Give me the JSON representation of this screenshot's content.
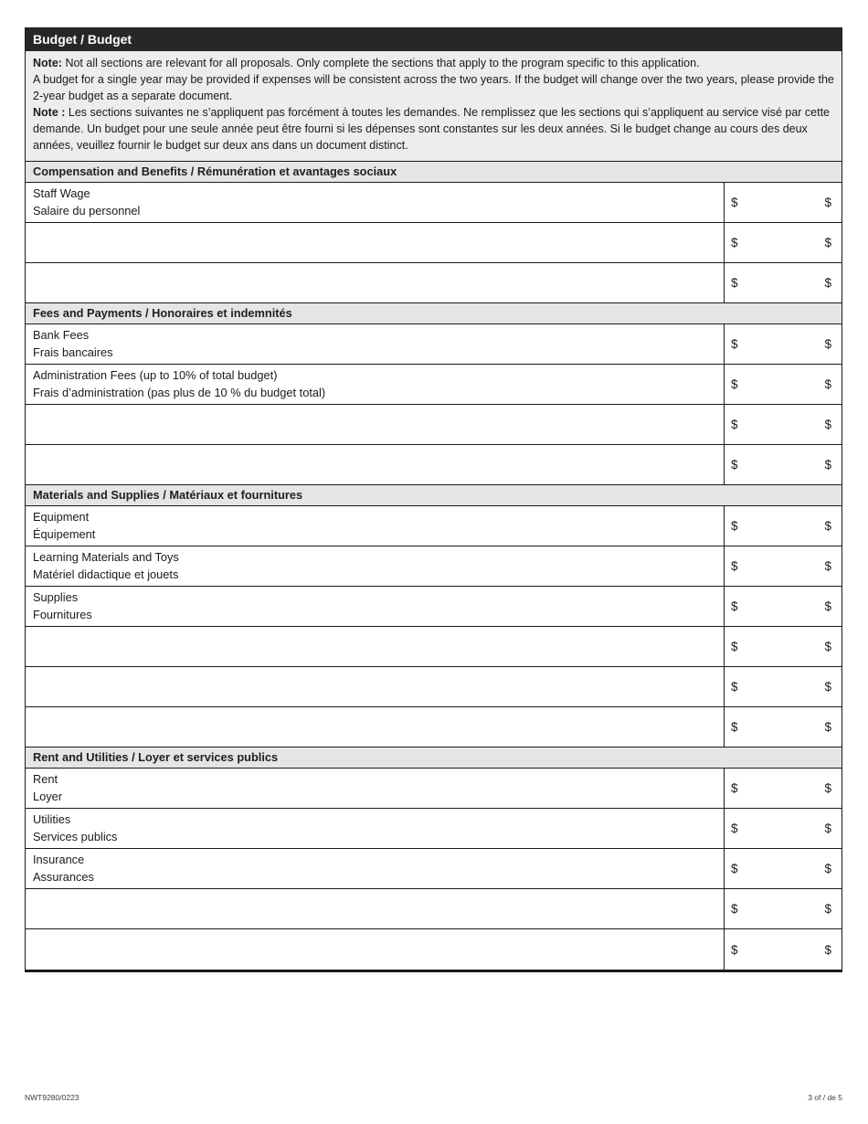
{
  "header": {
    "title": "Budget / Budget"
  },
  "note": {
    "en_label": "Note:",
    "en_line1": "Not all sections are relevant for all proposals. Only complete the sections that apply to the program specific to this application.",
    "en_line2": "A budget for a single year may be provided if expenses will be consistent across the two years. If the budget will change over the two years, please provide the 2-year budget as a separate document.",
    "fr_label": "Note :",
    "fr_text": "Les sections suivantes ne s’appliquent pas forcément à toutes les demandes. Ne remplissez que les sections qui s’appliquent au service visé par cette demande. Un budget pour une seule année peut être fourni si les dépenses sont constantes sur les deux années. Si le budget change au cours des deux années, veuillez fournir le budget sur deux ans dans un document distinct."
  },
  "currency_symbol": "$",
  "sections": [
    {
      "title": "Compensation and Benefits / Rémunération et avantages sociaux",
      "rows": [
        {
          "en": "Staff Wage",
          "fr": "Salaire du personnel"
        },
        {
          "en": "",
          "fr": ""
        },
        {
          "en": "",
          "fr": ""
        }
      ]
    },
    {
      "title": "Fees and Payments / Honoraires et indemnités",
      "rows": [
        {
          "en": "Bank Fees",
          "fr": "Frais bancaires"
        },
        {
          "en": "Administration Fees (up to 10% of total budget)",
          "fr": "Frais d’administration (pas plus de 10 % du budget total)"
        },
        {
          "en": "",
          "fr": ""
        },
        {
          "en": "",
          "fr": ""
        }
      ]
    },
    {
      "title": "Materials and Supplies / Matériaux et fournitures",
      "rows": [
        {
          "en": "Equipment",
          "fr": "Équipement"
        },
        {
          "en": "Learning Materials and Toys",
          "fr": "Matériel didactique et jouets"
        },
        {
          "en": "Supplies",
          "fr": "Fournitures"
        },
        {
          "en": "",
          "fr": ""
        },
        {
          "en": "",
          "fr": ""
        },
        {
          "en": "",
          "fr": ""
        }
      ]
    },
    {
      "title": "Rent and Utilities / Loyer et services publics",
      "rows": [
        {
          "en": "Rent",
          "fr": "Loyer"
        },
        {
          "en": "Utilities",
          "fr": "Services publics"
        },
        {
          "en": "Insurance",
          "fr": "Assurances"
        },
        {
          "en": "",
          "fr": ""
        },
        {
          "en": "",
          "fr": ""
        }
      ]
    }
  ],
  "footer": {
    "form_number": "NWT9280/0223",
    "page_indicator": "3 of / de 5"
  }
}
